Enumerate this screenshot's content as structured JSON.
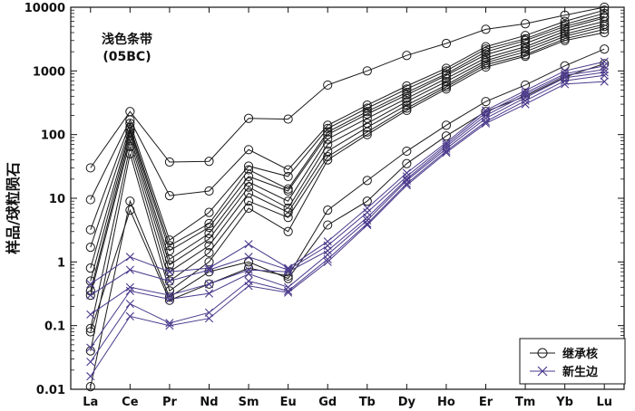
{
  "chart_data": {
    "type": "line",
    "y_scale": "log",
    "ylim": [
      0.01,
      10000
    ],
    "ylabel": "样品/球粒陨石",
    "xlabel": "",
    "title": "",
    "annotation": {
      "line1": "浅色条带",
      "line2": "(05BC)"
    },
    "categories": [
      "La",
      "Ce",
      "Pr",
      "Nd",
      "Sm",
      "Eu",
      "Gd",
      "Tb",
      "Dy",
      "Ho",
      "Er",
      "Tm",
      "Yb",
      "Lu"
    ],
    "y_ticks": [
      0.01,
      0.1,
      1,
      10,
      100,
      1000,
      10000
    ],
    "y_tick_labels": [
      "0.01",
      "0.1",
      "1",
      "10",
      "100",
      "1000",
      "10000"
    ],
    "legend": {
      "position": "bottom-right",
      "items": [
        "继承核",
        "新生边"
      ]
    },
    "colors": {
      "inherited": "#1a1a1a",
      "new": "#4b3a8c"
    },
    "series_groups": [
      {
        "name": "继承核",
        "marker": "circle",
        "color": "#1a1a1a",
        "series": [
          {
            "values": [
              30,
              230,
              37,
              38,
              180,
              175,
              600,
              1000,
              1750,
              2700,
              4500,
              5500,
              7500,
              10000
            ]
          },
          {
            "values": [
              9.5,
              170,
              11,
              13,
              58,
              28,
              140,
              290,
              580,
              1100,
              2400,
              3600,
              6000,
              9000
            ]
          },
          {
            "values": [
              3.2,
              150,
              2.2,
              6,
              32,
              22,
              125,
              260,
              520,
              1000,
              2200,
              3200,
              5400,
              8000
            ]
          },
          {
            "values": [
              1.7,
              130,
              1.8,
              4,
              28,
              14,
              110,
              230,
              460,
              900,
              2000,
              3000,
              5000,
              7200
            ]
          },
          {
            "values": [
              0.8,
              120,
              1.5,
              3.5,
              22,
              13,
              100,
              210,
              420,
              850,
              1800,
              2700,
              4600,
              6800
            ]
          },
          {
            "values": [
              0.5,
              110,
              1.1,
              2.8,
              18,
              9,
              85,
              180,
              370,
              760,
              1600,
              2400,
              4200,
              6000
            ]
          },
          {
            "values": [
              0.35,
              95,
              0.9,
              2.3,
              15,
              7,
              70,
              150,
              330,
              680,
              1450,
              2200,
              3800,
              5400
            ]
          },
          {
            "values": [
              0.3,
              80,
              0.7,
              1.8,
              12,
              6,
              55,
              130,
              290,
              600,
              1350,
              2000,
              3500,
              5000
            ]
          },
          {
            "values": [
              0.09,
              65,
              0.5,
              1.4,
              9,
              5,
              45,
              110,
              260,
              560,
              1250,
              1800,
              3200,
              4500
            ]
          },
          {
            "values": [
              0.04,
              50,
              0.35,
              1,
              7,
              3,
              40,
              100,
              240,
              520,
              1150,
              1700,
              3000,
              4000
            ]
          },
          {
            "values": [
              0.011,
              9,
              0.28,
              0.7,
              1,
              0.55,
              3.8,
              9,
              35,
              95,
              230,
              400,
              800,
              1300
            ]
          },
          {
            "values": [
              0.08,
              6.5,
              0.25,
              0.45,
              0.8,
              0.6,
              6.5,
              19,
              55,
              140,
              330,
              600,
              1200,
              2200
            ]
          }
        ]
      },
      {
        "name": "新生边",
        "marker": "x",
        "color": "#4b3a8c",
        "series": [
          {
            "values": [
              0.45,
              1.2,
              0.7,
              0.8,
              1.9,
              0.8,
              2.1,
              7,
              25,
              75,
              240,
              490,
              1000,
              1400
            ]
          },
          {
            "values": [
              0.3,
              0.75,
              0.5,
              0.75,
              1.2,
              0.75,
              1.8,
              6,
              22,
              70,
              220,
              450,
              900,
              1200
            ]
          },
          {
            "values": [
              0.15,
              0.4,
              0.3,
              0.45,
              0.75,
              0.7,
              1.5,
              5,
              20,
              65,
              200,
              420,
              850,
              1050
            ]
          },
          {
            "values": [
              0.045,
              0.35,
              0.26,
              0.32,
              0.65,
              0.4,
              1.3,
              4.5,
              19,
              60,
              180,
              380,
              780,
              950
            ]
          },
          {
            "values": [
              0.027,
              0.22,
              0.11,
              0.16,
              0.5,
              0.35,
              1.1,
              4,
              17,
              55,
              160,
              340,
              700,
              850
            ]
          },
          {
            "values": [
              0.016,
              0.14,
              0.1,
              0.13,
              0.42,
              0.33,
              1,
              3.8,
              16,
              52,
              150,
              300,
              620,
              680
            ]
          }
        ]
      }
    ]
  }
}
